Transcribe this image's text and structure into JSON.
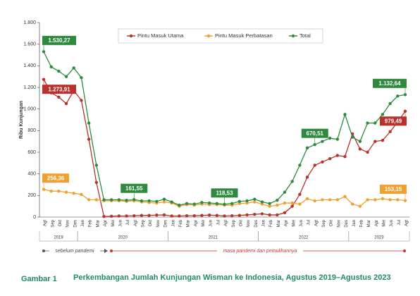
{
  "chart_data": {
    "type": "line",
    "y_label": "Ribu Kunjungan",
    "categories": [
      "Agt",
      "Sep",
      "Okt",
      "Nov",
      "Des",
      "Jan",
      "Feb",
      "Mar",
      "Apr",
      "Mei",
      "Jun",
      "Jul",
      "Agt",
      "Sep",
      "Okt",
      "Nov",
      "Des",
      "Jan",
      "Feb",
      "Mar",
      "Apr",
      "Mei",
      "Jun",
      "Jul",
      "Agt",
      "Sep",
      "Okt",
      "Nov",
      "Des",
      "Jan",
      "Feb",
      "Mar",
      "Apr",
      "Mei",
      "Jun",
      "Jul",
      "Agt",
      "Sep",
      "Okt",
      "Nov",
      "Des",
      "Jan",
      "Feb",
      "Mar",
      "Apr",
      "Mei",
      "Jun",
      "Jul",
      "Agt"
    ],
    "year_labels": [
      "2019",
      "2020",
      "2021",
      "2022",
      "2023"
    ],
    "series": [
      {
        "name": "Pintu Masuk Utama",
        "color": "#b8312a",
        "values": [
          1273.91,
          1150,
          1110,
          1050,
          1170,
          1080,
          720,
          320,
          5,
          8,
          10,
          10,
          12,
          15,
          15,
          18,
          20,
          10,
          10,
          12,
          12,
          15,
          18,
          15,
          10,
          12,
          15,
          20,
          25,
          30,
          20,
          20,
          40,
          100,
          210,
          370,
          480,
          510,
          540,
          570,
          560,
          770,
          630,
          600,
          700,
          710,
          790,
          880,
          979.49
        ],
        "value_labels": [
          "1.273,91",
          null,
          null,
          null,
          null,
          null,
          null,
          null,
          null,
          null,
          null,
          null,
          null,
          null,
          null,
          null,
          null,
          null,
          null,
          null,
          null,
          null,
          null,
          null,
          null,
          null,
          null,
          null,
          null,
          null,
          null,
          null,
          null,
          null,
          null,
          null,
          null,
          null,
          null,
          null,
          null,
          null,
          null,
          null,
          null,
          null,
          null,
          null,
          "979,49"
        ]
      },
      {
        "name": "Pintu Masuk Perbatasan",
        "color": "#f0a030",
        "values": [
          256.36,
          240,
          240,
          230,
          220,
          210,
          160,
          160,
          150,
          150,
          150,
          145,
          150,
          140,
          135,
          130,
          140,
          130,
          100,
          115,
          110,
          120,
          115,
          115,
          110,
          110,
          125,
          130,
          140,
          120,
          100,
          110,
          130,
          130,
          120,
          170,
          150,
          160,
          160,
          160,
          190,
          120,
          100,
          160,
          160,
          170,
          160,
          160,
          153.15
        ],
        "value_labels": [
          "256,36",
          null,
          null,
          null,
          null,
          null,
          null,
          null,
          null,
          null,
          null,
          null,
          null,
          null,
          null,
          null,
          null,
          null,
          null,
          null,
          null,
          null,
          null,
          null,
          null,
          null,
          null,
          null,
          null,
          null,
          null,
          null,
          null,
          null,
          null,
          null,
          null,
          null,
          null,
          null,
          null,
          null,
          null,
          null,
          null,
          null,
          null,
          null,
          "153,15"
        ]
      },
      {
        "name": "Total",
        "color": "#2e8b3e",
        "values": [
          1530.27,
          1390,
          1350,
          1300,
          1380,
          1290,
          870,
          480,
          160,
          160,
          160,
          155,
          161.55,
          150,
          150,
          145,
          165,
          140,
          110,
          125,
          120,
          135,
          130,
          125,
          118.53,
          125,
          145,
          150,
          165,
          140,
          125,
          155,
          230,
          330,
          480,
          640,
          670.51,
          700,
          730,
          720,
          950,
          740,
          700,
          870,
          870,
          950,
          1050,
          1120,
          1132.64
        ],
        "value_labels": [
          "1.530,27",
          null,
          null,
          null,
          null,
          null,
          null,
          null,
          null,
          null,
          null,
          null,
          "161,55",
          null,
          null,
          null,
          null,
          null,
          null,
          null,
          null,
          null,
          null,
          null,
          "118,53",
          null,
          null,
          null,
          null,
          null,
          null,
          null,
          null,
          null,
          null,
          null,
          "670,51",
          null,
          null,
          null,
          null,
          null,
          null,
          null,
          null,
          null,
          null,
          null,
          "1.132,64"
        ]
      }
    ],
    "ylim": [
      0,
      1800
    ],
    "yticks": [
      0,
      {
        "value": 200,
        "label": "200"
      },
      {
        "value": 400,
        "label": "400"
      },
      {
        "value": 600,
        "label": "600"
      },
      {
        "value": 800,
        "label": "800"
      },
      {
        "value": 1000,
        "label": "1.000"
      },
      {
        "value": 1200,
        "label": "1.200"
      },
      {
        "value": 1400,
        "label": "1.400"
      },
      {
        "value": 1600,
        "label": "1.600"
      },
      {
        "value": 1800,
        "label": "1.800"
      }
    ],
    "annotations": [
      "sebelum pandemi",
      "masa pandemi dan pemulihannya"
    ],
    "caption_number": "Gambar 1",
    "caption": "Perkembangan Jumlah Kunjungan Wisman ke Indonesia, Agustus 2019–Agustus 2023"
  }
}
